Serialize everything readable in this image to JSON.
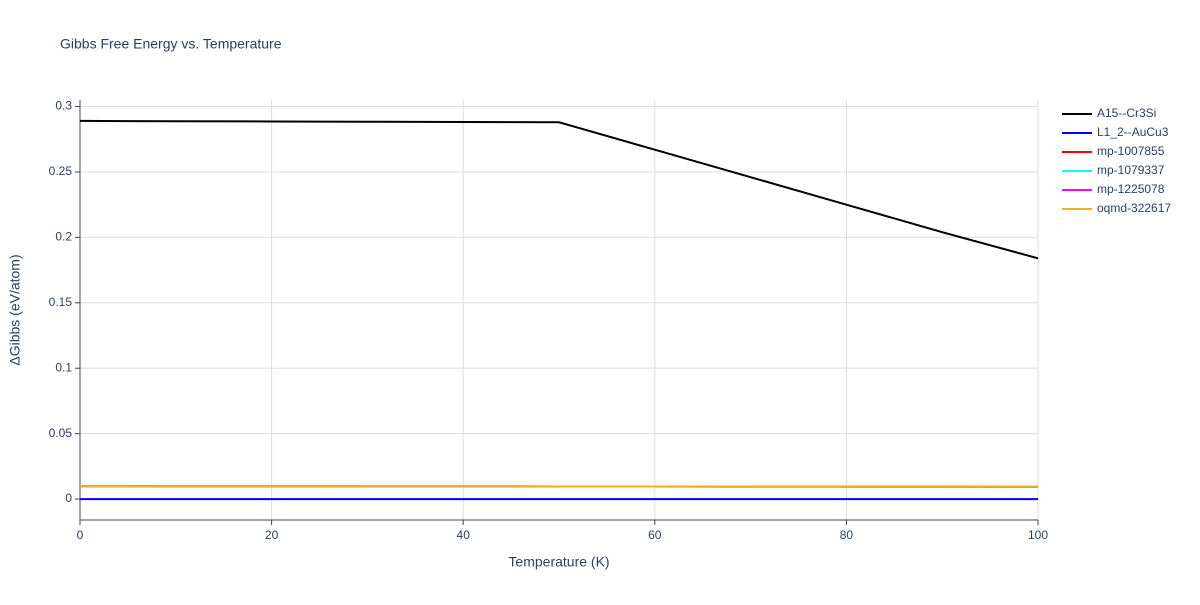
{
  "chart_data": {
    "type": "line",
    "title": "Gibbs Free Energy vs. Temperature",
    "xlabel": "Temperature (K)",
    "ylabel": "ΔGibbs (eV/atom)",
    "x": [
      0,
      10,
      20,
      30,
      40,
      50,
      60,
      70,
      80,
      90,
      100
    ],
    "series": [
      {
        "name": "A15--Cr3Si",
        "color": "#000000",
        "values": [
          0.289,
          0.2888,
          0.2886,
          0.2884,
          0.2882,
          0.288,
          0.267,
          0.246,
          0.225,
          0.204,
          0.184
        ]
      },
      {
        "name": "L1_2--AuCu3",
        "color": "#0000ff",
        "values": [
          0,
          0,
          0,
          0,
          0,
          0,
          0,
          0,
          0,
          0,
          0
        ]
      },
      {
        "name": "mp-1007855",
        "color": "#ff0000",
        "values": [
          0.0099,
          0.0098,
          0.0098,
          0.0097,
          0.0097,
          0.0096,
          0.0096,
          0.0095,
          0.0095,
          0.0094,
          0.0093
        ]
      },
      {
        "name": "mp-1079337",
        "color": "#00ffff",
        "values": [
          0.0099,
          0.0098,
          0.0098,
          0.0097,
          0.0097,
          0.0096,
          0.0096,
          0.0095,
          0.0095,
          0.0094,
          0.0093
        ]
      },
      {
        "name": "mp-1225078",
        "color": "#ff00ff",
        "values": [
          0.0099,
          0.0098,
          0.0098,
          0.0097,
          0.0097,
          0.0096,
          0.0096,
          0.0095,
          0.0095,
          0.0094,
          0.0093
        ]
      },
      {
        "name": "oqmd-322617",
        "color": "#f0b020",
        "values": [
          0.0099,
          0.0098,
          0.0098,
          0.0097,
          0.0097,
          0.0096,
          0.0096,
          0.0095,
          0.0095,
          0.0094,
          0.0093
        ]
      }
    ],
    "xlim": [
      0,
      100
    ],
    "xticks": [
      0,
      20,
      40,
      60,
      80,
      100
    ],
    "ylim": [
      -0.016,
      0.305
    ],
    "yticks": [
      0,
      0.05,
      0.1,
      0.15,
      0.2,
      0.25,
      0.3
    ],
    "grid": true,
    "legend": "right"
  }
}
